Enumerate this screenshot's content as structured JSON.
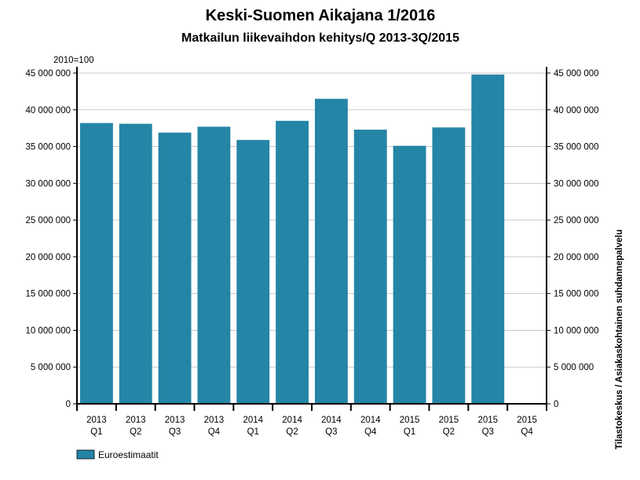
{
  "chart_data": {
    "type": "bar",
    "title": "Keski-Suomen Aikajana 1/2016",
    "subtitle": "Matkailun liikevaihdon kehitys/Q 2013-3Q/2015",
    "index_note": "2010=100",
    "source": "Tilastokeskus / Asiakaskohtainen suhdannepalvelu",
    "categories": [
      [
        "2013",
        "Q1"
      ],
      [
        "2013",
        "Q2"
      ],
      [
        "2013",
        "Q3"
      ],
      [
        "2013",
        "Q4"
      ],
      [
        "2014",
        "Q1"
      ],
      [
        "2014",
        "Q2"
      ],
      [
        "2014",
        "Q3"
      ],
      [
        "2014",
        "Q4"
      ],
      [
        "2015",
        "Q1"
      ],
      [
        "2015",
        "Q2"
      ],
      [
        "2015",
        "Q3"
      ],
      [
        "2015",
        "Q4"
      ]
    ],
    "series": [
      {
        "name": "Euroestimaatit",
        "color": "#2485a6",
        "values": [
          38200000,
          38100000,
          36900000,
          37700000,
          35900000,
          38500000,
          41500000,
          37300000,
          35100000,
          37600000,
          44800000,
          null
        ]
      }
    ],
    "ylim": [
      0,
      45000000
    ],
    "y_ticks": [
      0,
      5000000,
      10000000,
      15000000,
      20000000,
      25000000,
      30000000,
      35000000,
      40000000,
      45000000
    ],
    "y_tick_labels": [
      "0",
      "5 000 000",
      "10 000 000",
      "15 000 000",
      "20 000 000",
      "25 000 000",
      "30 000 000",
      "35 000 000",
      "40 000 000",
      "45 000 000"
    ],
    "grid": true,
    "legend_position": "bottom-left"
  }
}
